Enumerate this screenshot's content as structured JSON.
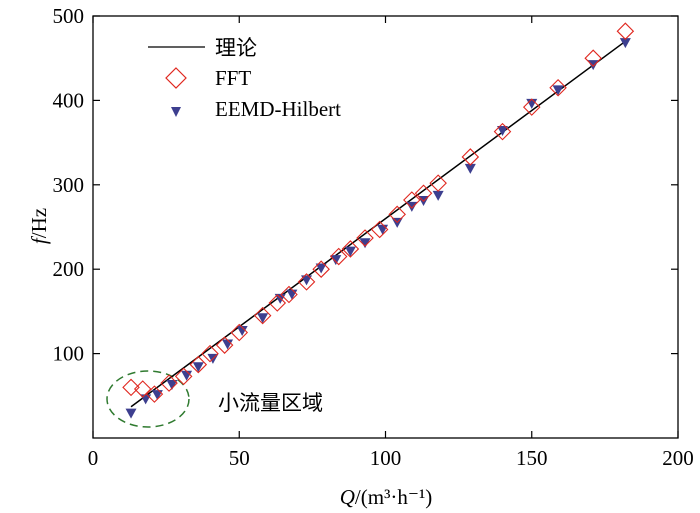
{
  "chart_data": {
    "type": "scatter",
    "title": "",
    "xlabel_var": "Q",
    "xlabel_unit": "/(m³·h⁻¹)",
    "ylabel_var": "f",
    "ylabel_unit": "/Hz",
    "xlim": [
      0,
      200
    ],
    "ylim": [
      0,
      500
    ],
    "xticks": [
      0,
      50,
      100,
      150,
      200
    ],
    "yticks": [
      100,
      200,
      300,
      400,
      500
    ],
    "grid": false,
    "legend_position": "top-left",
    "annotation": "小流量区域",
    "colors": {
      "theory": "#000000",
      "fft": "#e0271f",
      "eemd": "#3d3f8f",
      "ellipse": "#2f7a2f"
    },
    "series": [
      {
        "name": "理论",
        "kind": "line",
        "x": [
          13,
          182
        ],
        "y": [
          37,
          470
        ]
      },
      {
        "name": "FFT",
        "kind": "diamond",
        "x": [
          13,
          17,
          21,
          26,
          31,
          36,
          40,
          45,
          50,
          58,
          63,
          67,
          73,
          78,
          84,
          88,
          93,
          98,
          104,
          109,
          113,
          118,
          129,
          140,
          150,
          159,
          171,
          182
        ],
        "y": [
          60,
          58,
          52,
          65,
          73,
          87,
          100,
          110,
          125,
          145,
          160,
          170,
          185,
          200,
          215,
          224,
          237,
          247,
          265,
          282,
          290,
          302,
          333,
          363,
          392,
          415,
          450,
          482
        ]
      },
      {
        "name": "EEMD-Hilbert",
        "kind": "triangle-down",
        "x": [
          13,
          18,
          22,
          27,
          32,
          36,
          41,
          46,
          51,
          58,
          64,
          68,
          73,
          78,
          83,
          88,
          93,
          99,
          104,
          109,
          113,
          118,
          129,
          140,
          150,
          159,
          171,
          182
        ],
        "y": [
          30,
          47,
          52,
          64,
          75,
          85,
          95,
          112,
          128,
          143,
          166,
          171,
          188,
          202,
          212,
          222,
          232,
          248,
          256,
          275,
          282,
          288,
          320,
          365,
          397,
          413,
          443,
          469
        ]
      }
    ]
  }
}
